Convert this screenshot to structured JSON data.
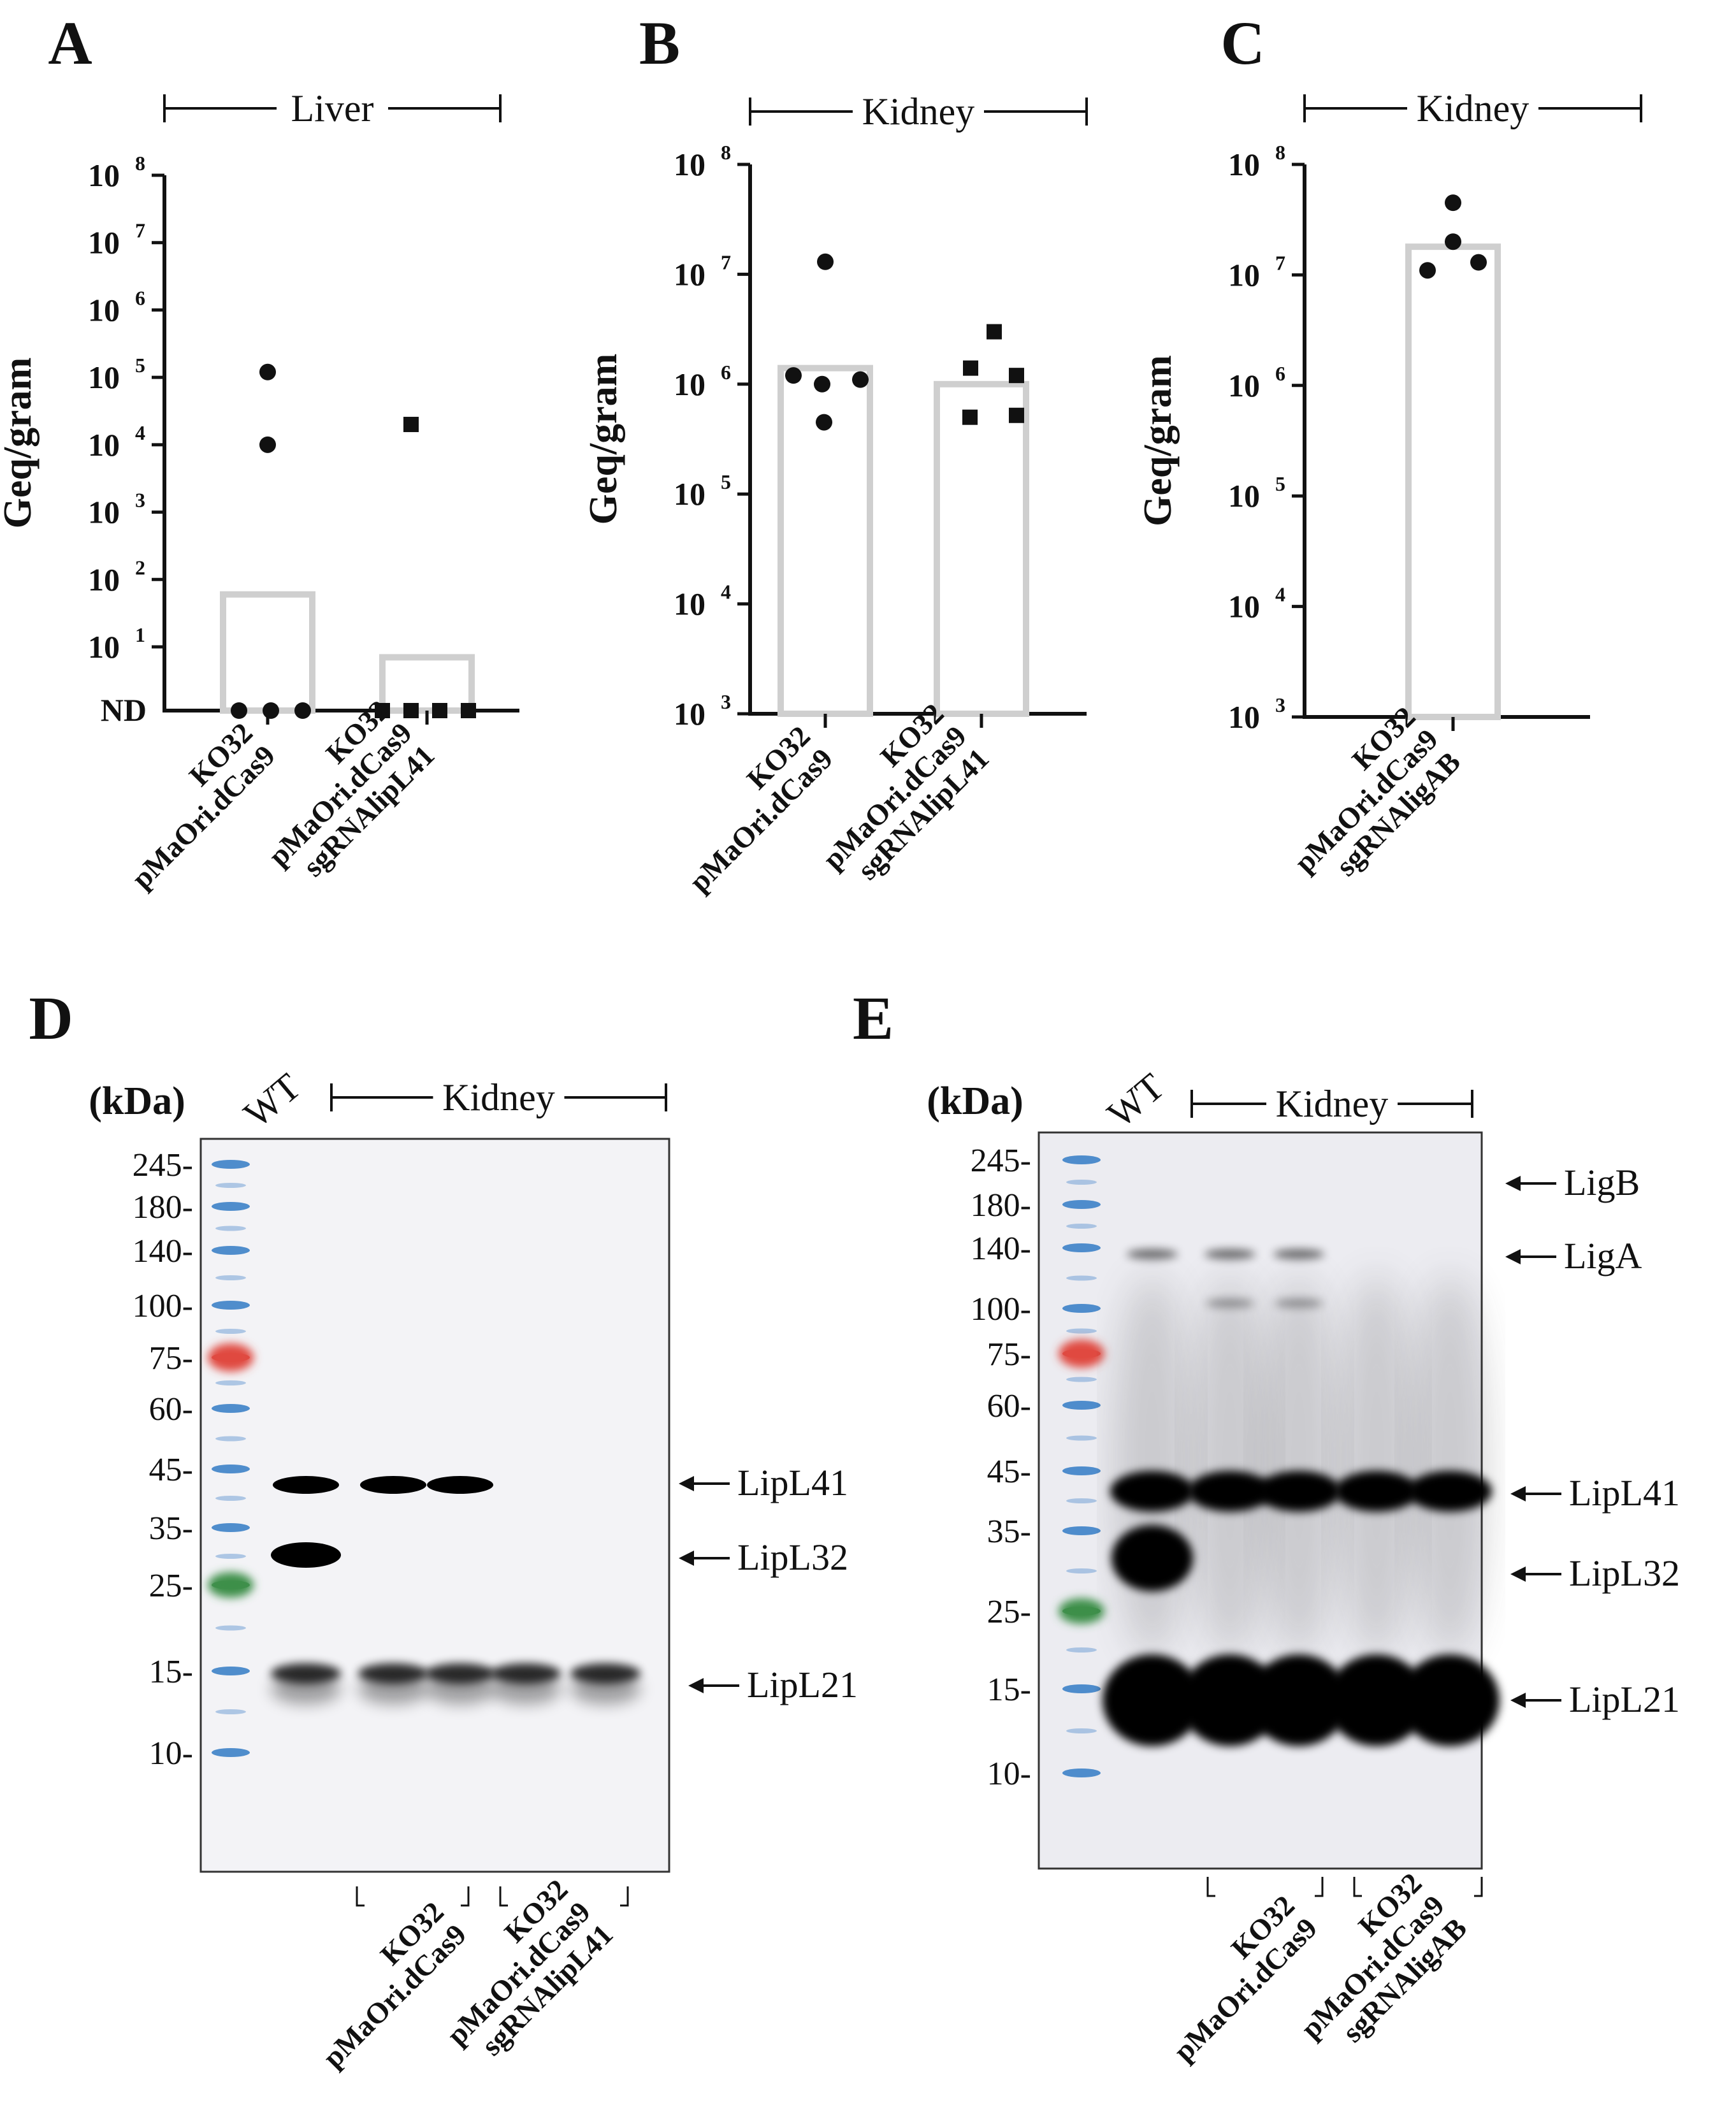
{
  "chart_data": [
    {
      "panel": "A",
      "type": "scatter",
      "scale": "log",
      "group_label": "Liver",
      "ylabel": "Geq/gram",
      "y_ticks": [
        {
          "base": "10",
          "exp": "8",
          "value": 100000000
        },
        {
          "base": "10",
          "exp": "7",
          "value": 10000000
        },
        {
          "base": "10",
          "exp": "6",
          "value": 1000000
        },
        {
          "base": "10",
          "exp": "5",
          "value": 100000
        },
        {
          "base": "10",
          "exp": "4",
          "value": 10000
        },
        {
          "base": "10",
          "exp": "3",
          "value": 1000
        },
        {
          "base": "10",
          "exp": "2",
          "value": 100
        },
        {
          "base": "10",
          "exp": "1",
          "value": 10
        }
      ],
      "nd_label": "ND",
      "categories": [
        {
          "lines": [
            "KO32",
            "pMaOri.dCas9"
          ],
          "marker": "circle",
          "bar_value": 60,
          "points": [
            120000,
            10000,
            "ND",
            "ND",
            "ND"
          ]
        },
        {
          "lines": [
            "KO32",
            "pMaOri.dCas9",
            "sgRNAlipL41"
          ],
          "marker": "square",
          "bar_value": 7,
          "points": [
            20000,
            "ND",
            "ND",
            "ND",
            "ND"
          ]
        }
      ]
    },
    {
      "panel": "B",
      "type": "scatter",
      "scale": "log",
      "group_label": "Kidney",
      "ylabel": "Geq/gram",
      "y_ticks": [
        {
          "base": "10",
          "exp": "8",
          "value": 100000000
        },
        {
          "base": "10",
          "exp": "7",
          "value": 10000000
        },
        {
          "base": "10",
          "exp": "6",
          "value": 1000000
        },
        {
          "base": "10",
          "exp": "5",
          "value": 100000
        },
        {
          "base": "10",
          "exp": "4",
          "value": 10000
        },
        {
          "base": "10",
          "exp": "3",
          "value": 1000
        }
      ],
      "categories": [
        {
          "lines": [
            "KO32",
            "pMaOri.dCas9"
          ],
          "marker": "circle",
          "bar_value": 1400000,
          "points": [
            13000000,
            1200000,
            1000000,
            1100000,
            450000
          ]
        },
        {
          "lines": [
            "KO32",
            "pMaOri.dCas9",
            "sgRNAlipL41"
          ],
          "marker": "square",
          "bar_value": 1000000,
          "points": [
            3000000,
            1400000,
            1200000,
            500000,
            520000
          ]
        }
      ]
    },
    {
      "panel": "C",
      "type": "scatter",
      "scale": "log",
      "group_label": "Kidney",
      "ylabel": "Geq/gram",
      "y_ticks": [
        {
          "base": "10",
          "exp": "8",
          "value": 100000000
        },
        {
          "base": "10",
          "exp": "7",
          "value": 10000000
        },
        {
          "base": "10",
          "exp": "6",
          "value": 1000000
        },
        {
          "base": "10",
          "exp": "5",
          "value": 100000
        },
        {
          "base": "10",
          "exp": "4",
          "value": 10000
        },
        {
          "base": "10",
          "exp": "3",
          "value": 1000
        }
      ],
      "categories": [
        {
          "lines": [
            "KO32",
            "pMaOri.dCas9",
            "sgRNAligAB"
          ],
          "marker": "circle",
          "bar_value": 18000000,
          "points": [
            45000000,
            20000000,
            11000000,
            13000000
          ]
        }
      ]
    },
    {
      "panel": "D",
      "type": "western_blot",
      "unit_label": "(kDa)",
      "wt_label": "WT",
      "group_label": "Kidney",
      "markers": [
        "245",
        "180",
        "140",
        "100",
        "75",
        "60",
        "45",
        "35",
        "25",
        "15",
        "10"
      ],
      "lanes": [
        {
          "label": "WT",
          "bands": [
            "LipL41",
            "LipL32",
            "LipL21"
          ]
        },
        {
          "label": "KO32 pMaOri.dCas9",
          "bands": [
            "LipL41",
            "LipL21"
          ]
        },
        {
          "label": "KO32 pMaOri.dCas9",
          "bands": [
            "LipL41",
            "LipL21"
          ]
        },
        {
          "label": "KO32 pMaOri.dCas9 sgRNAlipL41",
          "bands": [
            "LipL21"
          ]
        },
        {
          "label": "KO32 pMaOri.dCas9 sgRNAlipL41",
          "bands": [
            "LipL21"
          ]
        }
      ],
      "band_labels": [
        "LipL41",
        "LipL32",
        "LipL21"
      ],
      "group_labels": [
        {
          "lines": [
            "KO32",
            "pMaOri.dCas9"
          ]
        },
        {
          "lines": [
            "KO32",
            "pMaOri.dCas9",
            "sgRNAlipL41"
          ]
        }
      ]
    },
    {
      "panel": "E",
      "type": "western_blot",
      "unit_label": "(kDa)",
      "wt_label": "WT",
      "group_label": "Kidney",
      "markers": [
        "245",
        "180",
        "140",
        "100",
        "75",
        "60",
        "45",
        "35",
        "25",
        "15",
        "10"
      ],
      "band_labels": [
        "LigB",
        "LigA",
        "LipL41",
        "LipL32",
        "LipL21"
      ],
      "group_labels": [
        {
          "lines": [
            "KO32",
            "pMaOri.dCas9"
          ]
        },
        {
          "lines": [
            "KO32",
            "pMaOri.dCas9",
            "sgRNAligAB"
          ]
        }
      ]
    }
  ]
}
